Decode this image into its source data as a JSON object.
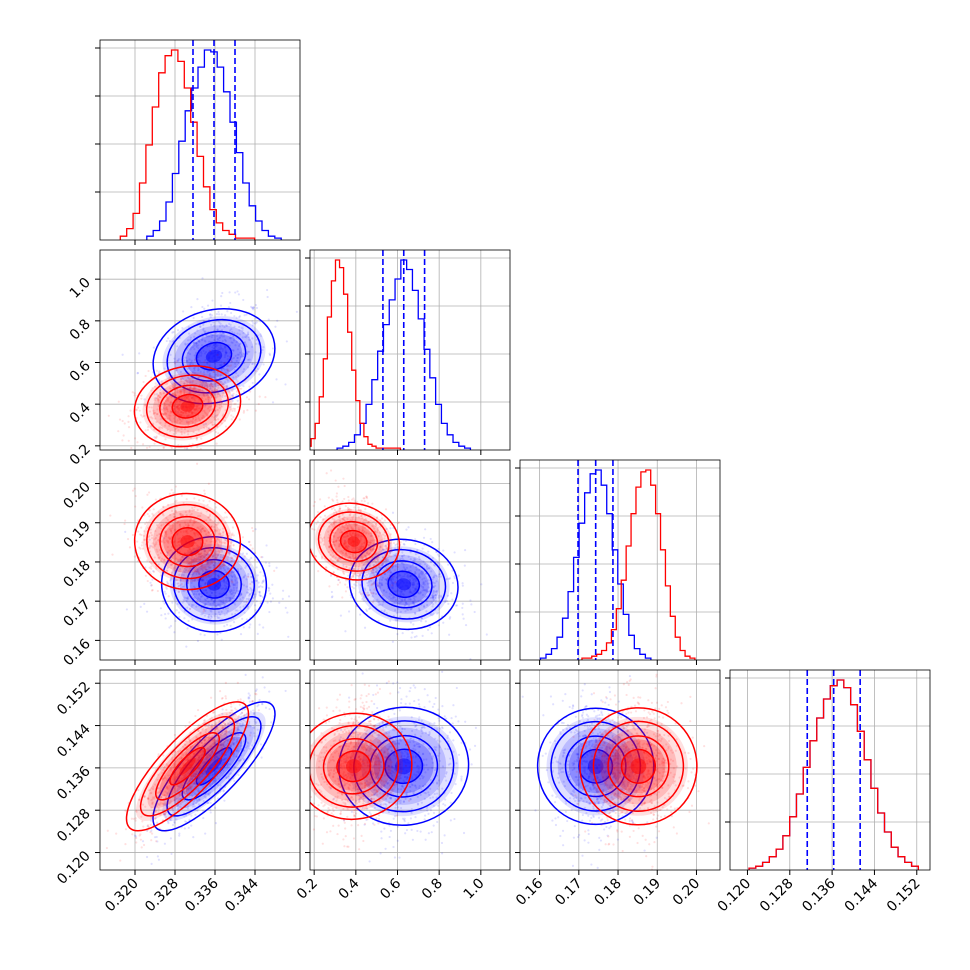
{
  "chart_data": {
    "type": "corner",
    "title": "",
    "grid": true,
    "colors": {
      "blue": "#0000ff",
      "red": "#ff0000",
      "axis": "#000000",
      "grid": "#b0b0b0"
    },
    "parameters": [
      {
        "range": [
          0.313,
          0.353
        ],
        "ticks": [
          0.32,
          0.328,
          0.336,
          0.344
        ],
        "tick_labels": [
          "0.320",
          "0.328",
          "0.336",
          "0.344"
        ]
      },
      {
        "range": [
          0.18,
          1.14
        ],
        "ticks": [
          0.2,
          0.4,
          0.6,
          0.8,
          1.0
        ],
        "tick_labels": [
          "0.2",
          "0.4",
          "0.6",
          "0.8",
          "1.0"
        ]
      },
      {
        "range": [
          0.155,
          0.206
        ],
        "ticks": [
          0.16,
          0.17,
          0.18,
          0.19,
          0.2
        ],
        "tick_labels": [
          "0.16",
          "0.17",
          "0.18",
          "0.19",
          "0.20"
        ]
      },
      {
        "range": [
          0.1167,
          0.1545
        ],
        "ticks": [
          0.12,
          0.128,
          0.136,
          0.144,
          0.152
        ],
        "tick_labels": [
          "0.120",
          "0.128",
          "0.136",
          "0.144",
          "0.152"
        ]
      }
    ],
    "quantile_lines_blue": [
      [
        0.3316,
        0.3358,
        0.34
      ],
      [
        0.53,
        0.63,
        0.73
      ],
      [
        0.1698,
        0.1743,
        0.1787
      ],
      [
        0.1313,
        0.1363,
        0.1413
      ]
    ],
    "series": [
      {
        "name": "",
        "color": "#0000ff",
        "mean": [
          0.3358,
          0.63,
          0.1743,
          0.1363
        ],
        "sd": [
          0.0042,
          0.1,
          0.0044,
          0.005
        ],
        "corr": [
          [
            1,
            0.3,
            -0.1,
            0.85
          ],
          [
            0.3,
            1,
            -0.2,
            0.1
          ],
          [
            -0.1,
            -0.2,
            1,
            0.0
          ],
          [
            0.85,
            0.1,
            0.0,
            1
          ]
        ],
        "histograms": [
          [
            2,
            5,
            10,
            20,
            35,
            52,
            68,
            80,
            91,
            100,
            99,
            91,
            78,
            62,
            46,
            30,
            18,
            10,
            5,
            2,
            1
          ],
          [
            1,
            2,
            4,
            8,
            14,
            24,
            37,
            52,
            66,
            79,
            90,
            100,
            95,
            84,
            69,
            53,
            38,
            24,
            14,
            8,
            4,
            2,
            1
          ],
          [
            1,
            3,
            6,
            12,
            22,
            36,
            54,
            72,
            88,
            98,
            100,
            92,
            77,
            58,
            40,
            24,
            13,
            6,
            3,
            1
          ],
          [
            1,
            2,
            4,
            7,
            11,
            18,
            28,
            40,
            54,
            68,
            80,
            90,
            97,
            100,
            96,
            87,
            73,
            58,
            43,
            30,
            20,
            12,
            7,
            4,
            2
          ]
        ]
      },
      {
        "name": "",
        "color": "#ff0000",
        "mean": [
          0.3305,
          0.39,
          0.1852,
          0.1363
        ],
        "sd": [
          0.0042,
          0.07,
          0.0045,
          0.005
        ],
        "corr": [
          [
            1,
            0.3,
            -0.1,
            0.85
          ],
          [
            0.3,
            1,
            -0.2,
            0.1
          ],
          [
            -0.1,
            -0.2,
            1,
            0.0
          ],
          [
            0.85,
            0.1,
            0.0,
            1
          ]
        ],
        "histograms": [
          [
            2,
            6,
            14,
            30,
            50,
            70,
            88,
            97,
            100,
            94,
            80,
            62,
            44,
            28,
            16,
            9,
            5,
            3,
            1,
            1,
            1
          ],
          [
            2,
            6,
            14,
            28,
            48,
            70,
            89,
            100,
            96,
            82,
            62,
            42,
            26,
            14,
            7,
            3,
            2,
            1,
            1,
            1,
            1,
            1,
            1
          ],
          [
            1,
            1,
            2,
            3,
            5,
            9,
            16,
            27,
            42,
            60,
            77,
            91,
            99,
            100,
            92,
            77,
            58,
            39,
            23,
            12,
            5,
            2,
            1
          ],
          [
            1,
            2,
            4,
            7,
            11,
            18,
            28,
            40,
            54,
            68,
            80,
            90,
            97,
            100,
            96,
            87,
            73,
            58,
            43,
            30,
            20,
            12,
            7,
            4,
            2
          ]
        ]
      }
    ]
  }
}
